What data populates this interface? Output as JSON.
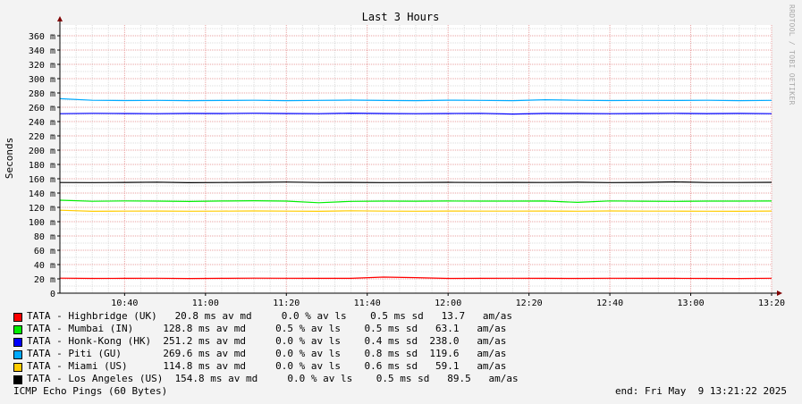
{
  "chart_data": {
    "type": "line",
    "title": "Last 3 Hours",
    "ylabel": "Seconds",
    "xlabel": "",
    "ylim": [
      0,
      375
    ],
    "xlim": [
      "10:24",
      "13:20"
    ],
    "y_ticks": [
      0,
      20,
      40,
      60,
      80,
      100,
      120,
      140,
      160,
      180,
      200,
      220,
      240,
      260,
      280,
      300,
      320,
      340,
      360
    ],
    "y_tick_labels": [
      "0",
      "20 m",
      "40 m",
      "60 m",
      "80 m",
      "100 m",
      "120 m",
      "140 m",
      "160 m",
      "180 m",
      "200 m",
      "220 m",
      "240 m",
      "260 m",
      "280 m",
      "300 m",
      "320 m",
      "340 m",
      "360 m"
    ],
    "x_tick_labels": [
      "10:40",
      "11:00",
      "11:20",
      "11:40",
      "12:00",
      "12:20",
      "12:40",
      "13:00",
      "13:20"
    ],
    "grid": true,
    "colors": {
      "background": "#f3f3f3",
      "canvas": "#ffffff",
      "major_grid": "#e8a0a0",
      "minor_grid": "#dcdcdc",
      "axis": "#000000",
      "arrow": "#800000"
    },
    "x": [
      "10:24",
      "10:32",
      "10:40",
      "10:48",
      "10:56",
      "11:04",
      "11:12",
      "11:20",
      "11:28",
      "11:36",
      "11:44",
      "11:52",
      "12:00",
      "12:08",
      "12:16",
      "12:24",
      "12:32",
      "12:40",
      "12:48",
      "12:56",
      "13:04",
      "13:12",
      "13:20"
    ],
    "series": [
      {
        "name": "TATA - Highbridge (UK)",
        "color": "#ff0000",
        "values": [
          21.0,
          20.6,
          20.8,
          20.9,
          20.5,
          20.8,
          21.0,
          20.9,
          20.7,
          20.8,
          22.5,
          21.8,
          20.6,
          20.7,
          20.9,
          20.8,
          20.6,
          20.9,
          20.7,
          20.8,
          20.6,
          20.5,
          20.9
        ]
      },
      {
        "name": "TATA - Mumbai (IN)",
        "color": "#00ee00",
        "values": [
          130.0,
          128.5,
          129.0,
          128.8,
          128.3,
          128.9,
          129.2,
          128.7,
          126.5,
          128.4,
          128.8,
          128.6,
          128.9,
          128.7,
          128.8,
          128.9,
          127.0,
          129.0,
          128.6,
          128.4,
          128.7,
          128.8,
          128.9
        ]
      },
      {
        "name": "TATA - Honk-Kong (HK)",
        "color": "#0000ff",
        "values": [
          251.0,
          251.5,
          251.2,
          251.0,
          251.4,
          251.2,
          251.6,
          251.3,
          251.0,
          251.7,
          251.2,
          251.0,
          251.3,
          251.5,
          250.5,
          251.4,
          251.2,
          251.0,
          251.3,
          251.5,
          251.1,
          251.4,
          251.0
        ]
      },
      {
        "name": "TATA - Piti (GU)",
        "color": "#00aaff",
        "values": [
          272.0,
          269.8,
          269.4,
          269.6,
          269.3,
          269.5,
          269.8,
          269.3,
          269.6,
          270.0,
          269.5,
          269.2,
          269.9,
          269.6,
          269.3,
          270.5,
          269.7,
          269.4,
          269.6,
          269.5,
          269.8,
          269.3,
          269.6
        ]
      },
      {
        "name": "TATA - Miami (US)",
        "color": "#ffcc00",
        "values": [
          116.0,
          114.5,
          114.8,
          114.9,
          114.6,
          114.8,
          115.0,
          114.7,
          114.5,
          115.2,
          114.8,
          114.6,
          114.9,
          114.7,
          114.8,
          114.9,
          114.6,
          115.0,
          114.7,
          114.8,
          114.6,
          114.5,
          114.9
        ]
      },
      {
        "name": "TATA - Los Angeles (US)",
        "color": "#000000",
        "values": [
          154.8,
          154.6,
          154.9,
          155.2,
          154.5,
          154.8,
          155.0,
          155.4,
          154.7,
          154.9,
          154.6,
          154.8,
          155.0,
          154.7,
          154.9,
          154.8,
          155.1,
          154.6,
          154.9,
          155.6,
          154.8,
          154.7,
          155.0
        ]
      }
    ]
  },
  "legend": [
    {
      "swatch": "#ff0000",
      "text": "TATA - Highbridge (UK)   20.8 ms av md     0.0 % av ls    0.5 ms sd   13.7   am/as"
    },
    {
      "swatch": "#00ee00",
      "text": "TATA - Mumbai (IN)     128.8 ms av md     0.5 % av ls    0.5 ms sd   63.1   am/as"
    },
    {
      "swatch": "#0000ff",
      "text": "TATA - Honk-Kong (HK)  251.2 ms av md     0.0 % av ls    0.4 ms sd  238.0   am/as"
    },
    {
      "swatch": "#00aaff",
      "text": "TATA - Piti (GU)       269.6 ms av md     0.0 % av ls    0.8 ms sd  119.6   am/as"
    },
    {
      "swatch": "#ffcc00",
      "text": "TATA - Miami (US)      114.8 ms av md     0.0 % av ls    0.6 ms sd   59.1   am/as"
    },
    {
      "swatch": "#000000",
      "text": "TATA - Los Angeles (US)  154.8 ms av md     0.0 % av ls    0.5 ms sd   89.5   am/as"
    }
  ],
  "footer": {
    "left": "ICMP Echo Pings (60 Bytes)",
    "right": "end: Fri May  9 13:21:22 2025"
  },
  "watermark": "RRDTOOL / TOBI OETIKER"
}
